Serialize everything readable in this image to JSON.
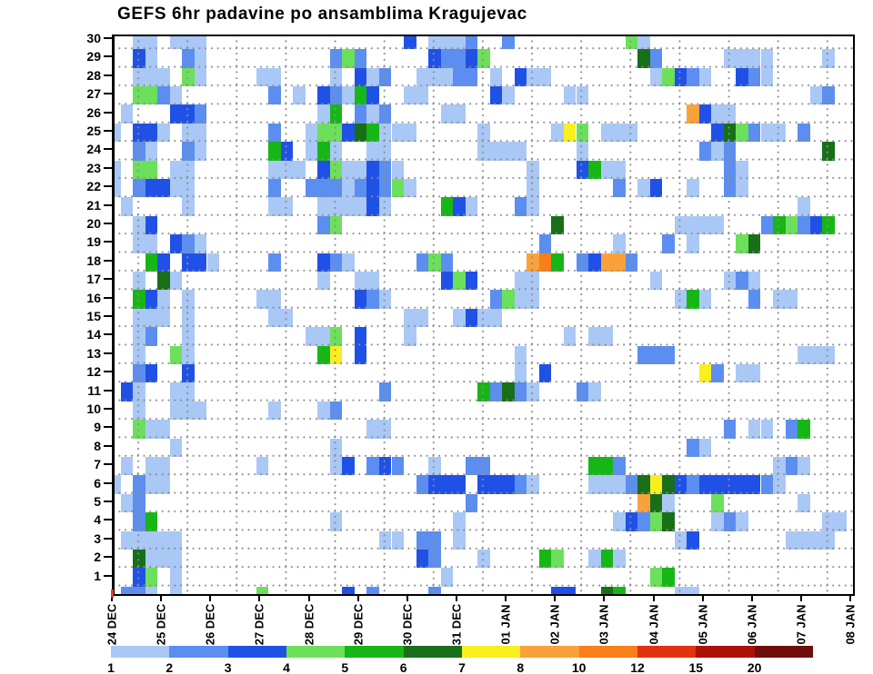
{
  "title": "GEFS 6hr padavine po ansamblima Kragujevac",
  "y_axis": {
    "labels": [
      "30",
      "29",
      "28",
      "27",
      "26",
      "25",
      "24",
      "23",
      "22",
      "21",
      "20",
      "19",
      "18",
      "17",
      "16",
      "15",
      "14",
      "13",
      "12",
      "11",
      "10",
      "9",
      "8",
      "7",
      "6",
      "5",
      "4",
      "3",
      "2",
      "1"
    ]
  },
  "x_axis": {
    "labels": [
      "24 DEC",
      "25 DEC",
      "26 DEC",
      "27 DEC",
      "28 DEC",
      "29 DEC",
      "30 DEC",
      "31 DEC",
      "01 JAN",
      "02 JAN",
      "03 JAN",
      "04 JAN",
      "05 JAN",
      "06 JAN",
      "07 JAN",
      "08 JAN"
    ]
  },
  "colorbar": {
    "labels": [
      "1",
      "2",
      "3",
      "4",
      "5",
      "6",
      "7",
      "8",
      "10",
      "12",
      "15",
      "20"
    ],
    "colors": [
      "#aac8f5",
      "#5b8ef0",
      "#2051e6",
      "#6ce05a",
      "#16b616",
      "#186f18",
      "#f9ef1f",
      "#f9a23b",
      "#f87f1a",
      "#e2320e",
      "#ad1005",
      "#710c0c"
    ]
  },
  "chart_data": {
    "type": "heatmap",
    "title": "GEFS 6hr padavine po ansamblima Kragujevac",
    "xlabel": "",
    "ylabel": "",
    "x_days": [
      "24 DEC",
      "25 DEC",
      "26 DEC",
      "27 DEC",
      "28 DEC",
      "29 DEC",
      "30 DEC",
      "31 DEC",
      "01 JAN",
      "02 JAN",
      "03 JAN",
      "04 JAN",
      "05 JAN",
      "06 JAN",
      "07 JAN",
      "08 JAN"
    ],
    "columns_per_day": 4,
    "n_columns": 61,
    "y_members_range": [
      0,
      30
    ],
    "grid": "dotted",
    "legend_position": "bottom",
    "units_mm_levels": [
      1,
      2,
      3,
      4,
      5,
      6,
      7,
      8,
      10,
      12,
      15,
      20
    ],
    "color_levels": {
      "1": "#aac8f5",
      "2": "#5b8ef0",
      "3": "#2051e6",
      "4": "#6ce05a",
      "5": "#16b616",
      "6": "#186f18",
      "7": "#f9ef1f",
      "8": "#f9a23b",
      "a": "#f87f1a"
    },
    "rows": [
      {
        "member": 30,
        "cells": "..11.111................3.1112..2.........41................."
      },
      {
        "member": 29,
        "cells": "..31..21..........242.....32234............62.....1111....1.."
      },
      {
        "member": 28,
        "cells": "..111.41....11....1.312..11122.1.311........14321..321......."
      },
      {
        "member": 27,
        "cells": "..4421.......2.1.32153..11.....31....11..................12.."
      },
      {
        "member": 26,
        "cells": ".1...332.........15.212....11..................8311.........."
      },
      {
        "member": 25,
        "cells": "1.331.11.....2..144365111.....1.....174.111......364211.2...."
      },
      {
        "member": 24,
        "cells": "..21..21.....53.151..11.......1111....1.........212.......6.."
      },
      {
        "member": 23,
        "cells": "1.44.11......111.3411321..........1...3511........21........."
      },
      {
        "member": 22,
        "cells": "1.23311......2..222123241.........1......2.13..1..21........."
      },
      {
        "member": 21,
        "cells": ".1....1......11..111131....531...21.....................1...."
      },
      {
        "member": 20,
        "cells": "..13.............24.................6.........1111...254235.."
      },
      {
        "member": 19,
        "cells": "..11.321...........................2.....1...2.1...46........"
      },
      {
        "member": 18,
        "cells": "...53.331....2...321.....242......8a5.23882.................."
      },
      {
        "member": 17,
        "cells": "..1.61...........1..11.....343...11.........1.....121........"
      },
      {
        "member": 16,
        "cells": "..531.1.....11......321........2411...........151...2.11....."
      },
      {
        "member": 15,
        "cells": "..111.1......11.........11..1311............................."
      },
      {
        "member": 14,
        "cells": "..12..1.........114.3...1............1.11...................."
      },
      {
        "member": 13,
        "cells": "..1..41..........57.3............1.........222..........111.."
      },
      {
        "member": 12,
        "cells": "..23..3..........................1.3............72.11........"
      },
      {
        "member": 11,
        "cells": ".31..11...............2.......52621...21....................."
      },
      {
        "member": 10,
        "cells": "..1..111.....1...12.........................................."
      },
      {
        "member": 9,
        "cells": "..411................11...........................2.11.25...."
      },
      {
        "member": 8,
        "cells": ".....1............1............................21............"
      },
      {
        "member": 7,
        "cells": ".1.11.......1.....13.232..1..22........552............121...."
      },
      {
        "member": 6,
        "cells": "1.211....................2333.33321....1112676323333321......"
      },
      {
        "member": 5,
        "cells": ".12..........................2.............861...4......1...."
      },
      {
        "member": 4,
        "cells": "..25..............1.........1............13246...121......11."
      },
      {
        "member": 3,
        "cells": ".11111................11.22.1.................13.......1111.."
      },
      {
        "member": 2,
        "cells": "..6111...................32...1....54..151..................."
      },
      {
        "member": 1,
        "cells": "..34.1.....................1................45..............."
      },
      {
        "member": 0,
        "cells": ".221.1......4......3.2....2.........33..65....11............."
      }
    ]
  }
}
